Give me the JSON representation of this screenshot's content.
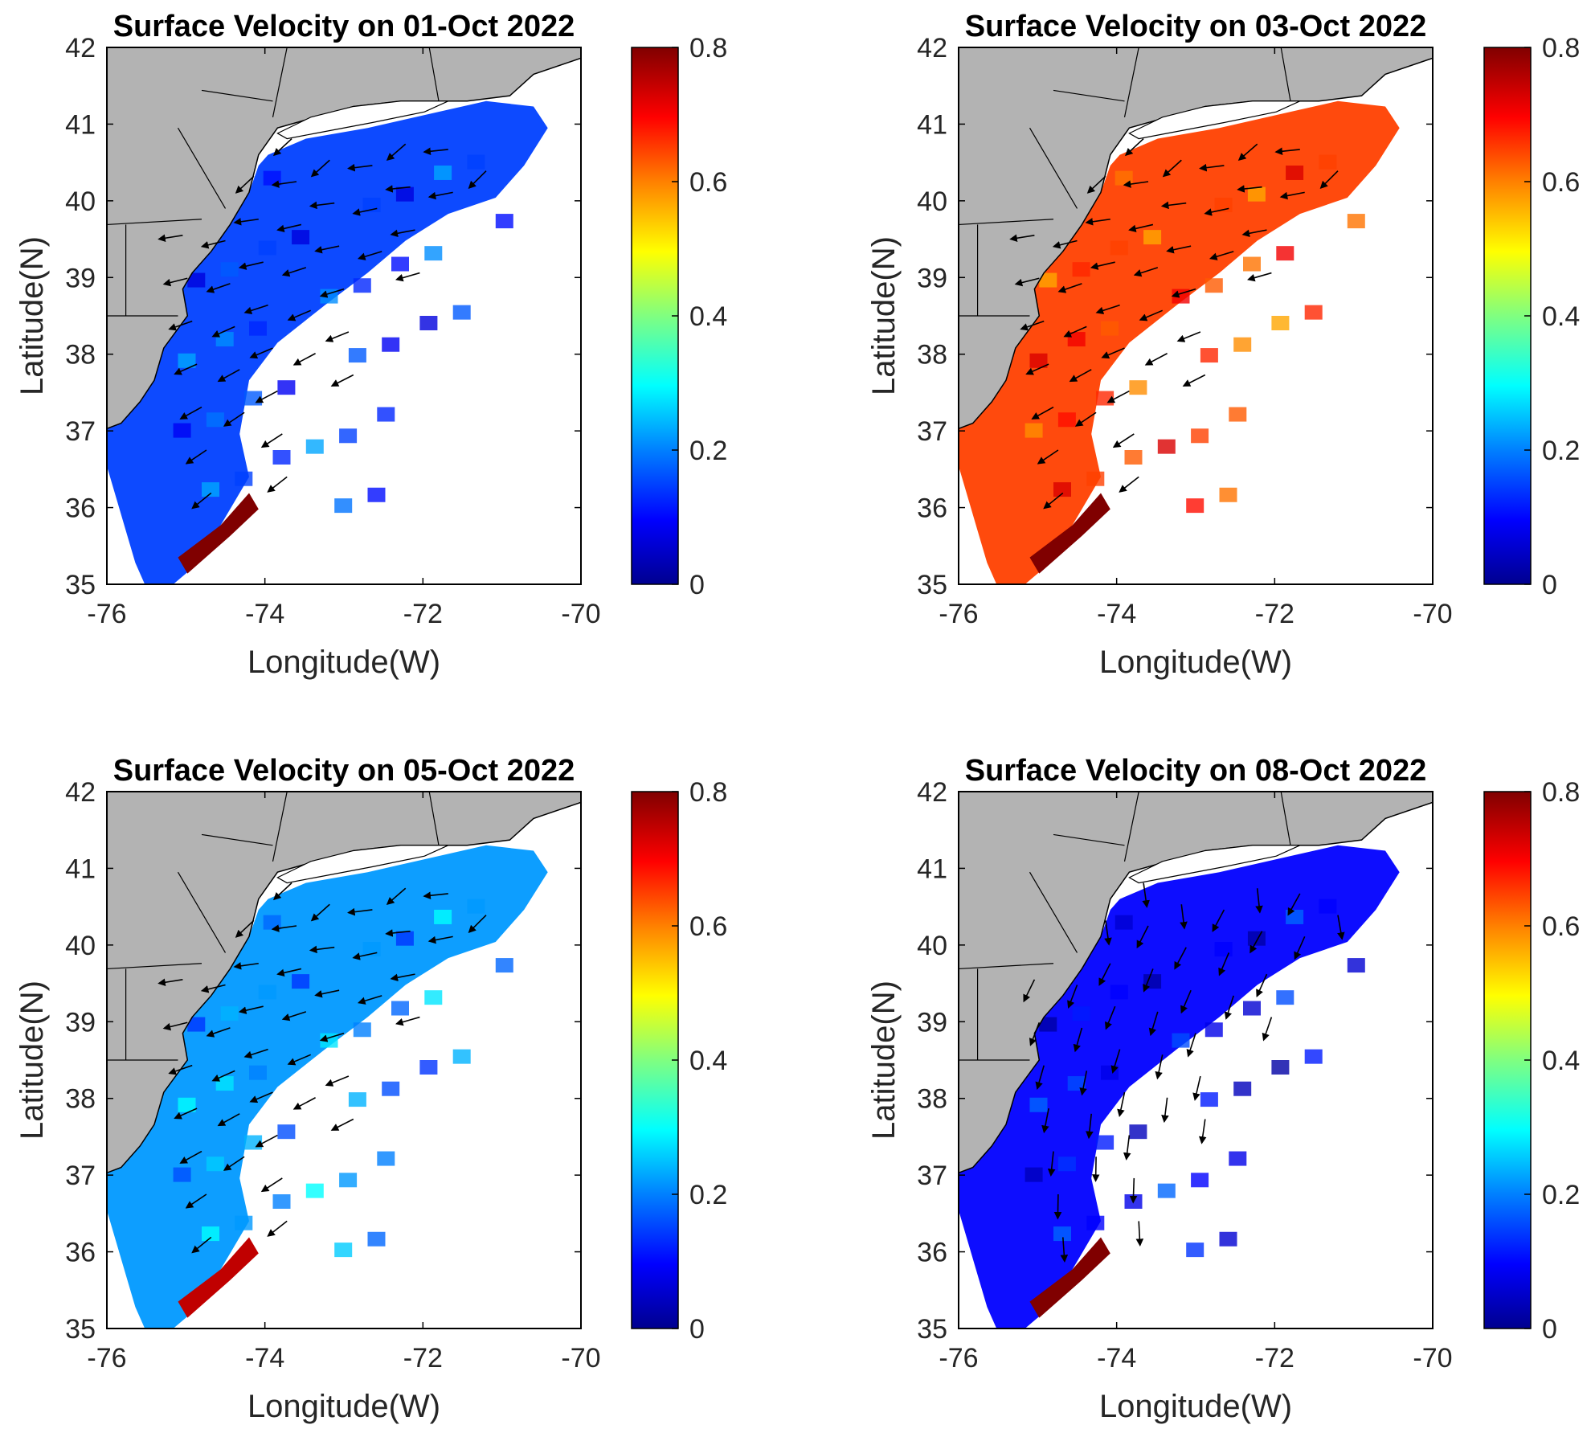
{
  "figure": {
    "colorbar_ticks": [
      "0",
      "0.2",
      "0.4",
      "0.6",
      "0.8"
    ],
    "colorbar_range": [
      0,
      0.8
    ],
    "colormap": [
      "#00008f",
      "#0000ff",
      "#0080ff",
      "#00ffff",
      "#80ff80",
      "#ffff00",
      "#ff8000",
      "#ff0000",
      "#800000"
    ],
    "land_color": "#b3b3b3",
    "arrow_color": "#000000"
  },
  "chart_data": [
    {
      "type": "heatmap",
      "title": "Surface Velocity on 01-Oct 2022",
      "xlabel": "Longitude(W)",
      "ylabel": "Latitude(N)",
      "xlim": [
        -76,
        -70
      ],
      "ylim": [
        35,
        42
      ],
      "xticks": [
        "-76",
        "-74",
        "-72",
        "-70"
      ],
      "yticks": [
        "35",
        "36",
        "37",
        "38",
        "39",
        "40",
        "41",
        "42"
      ],
      "dominant_speed": 0.15,
      "hotspot_speed": 0.8,
      "flow_direction": "southwest"
    },
    {
      "type": "heatmap",
      "title": "Surface Velocity on 03-Oct 2022",
      "xlabel": "Longitude(W)",
      "ylabel": "Latitude(N)",
      "xlim": [
        -76,
        -70
      ],
      "ylim": [
        35,
        42
      ],
      "xticks": [
        "-76",
        "-74",
        "-72",
        "-70"
      ],
      "yticks": [
        "35",
        "36",
        "37",
        "38",
        "39",
        "40",
        "41",
        "42"
      ],
      "dominant_speed": 0.65,
      "hotspot_speed": 0.8,
      "flow_direction": "southwest"
    },
    {
      "type": "heatmap",
      "title": "Surface Velocity on 05-Oct 2022",
      "xlabel": "Longitude(W)",
      "ylabel": "Latitude(N)",
      "xlim": [
        -76,
        -70
      ],
      "ylim": [
        35,
        42
      ],
      "xticks": [
        "-76",
        "-74",
        "-72",
        "-70"
      ],
      "yticks": [
        "35",
        "36",
        "37",
        "38",
        "39",
        "40",
        "41",
        "42"
      ],
      "dominant_speed": 0.22,
      "hotspot_speed": 0.75,
      "flow_direction": "southwest"
    },
    {
      "type": "heatmap",
      "title": "Surface Velocity on 08-Oct 2022",
      "xlabel": "Longitude(W)",
      "ylabel": "Latitude(N)",
      "xlim": [
        -76,
        -70
      ],
      "ylim": [
        35,
        42
      ],
      "xticks": [
        "-76",
        "-74",
        "-72",
        "-70"
      ],
      "yticks": [
        "35",
        "36",
        "37",
        "38",
        "39",
        "40",
        "41",
        "42"
      ],
      "dominant_speed": 0.1,
      "hotspot_speed": 0.8,
      "flow_direction": "south"
    }
  ]
}
